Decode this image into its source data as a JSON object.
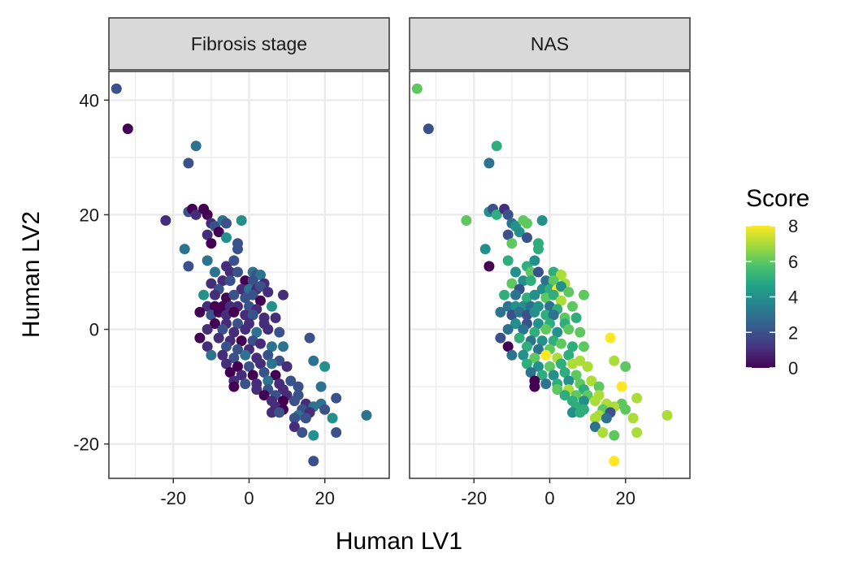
{
  "chart_data": {
    "type": "scatter",
    "facet_titles": [
      "Fibrosis stage",
      "NAS"
    ],
    "xlabel": "Human LV1",
    "ylabel": "Human LV2",
    "xlim": [
      -37,
      37
    ],
    "ylim": [
      -26,
      45
    ],
    "x_ticks": [
      -20,
      0,
      20
    ],
    "y_ticks": [
      -20,
      0,
      20,
      40
    ],
    "x_tick_labels": [
      "-20",
      "0",
      "20"
    ],
    "y_tick_labels": [
      "-20",
      "0",
      "20",
      "40"
    ],
    "legend": {
      "title": "Score",
      "position": "right",
      "range": [
        0,
        8
      ],
      "ticks": [
        0,
        2,
        4,
        6,
        8
      ],
      "tick_labels": [
        "0",
        "2",
        "4",
        "6",
        "8"
      ],
      "colors": [
        "#440154",
        "#46337e",
        "#365c8d",
        "#277f8e",
        "#1fa187",
        "#4ac16d",
        "#9fda3a",
        "#fde725"
      ]
    },
    "grid": true,
    "points": [
      {
        "x": -35,
        "y": 42,
        "fibrosis": 2,
        "nas": 6
      },
      {
        "x": -32,
        "y": 35,
        "fibrosis": 0,
        "nas": 2
      },
      {
        "x": -14,
        "y": 32,
        "fibrosis": 3,
        "nas": 5
      },
      {
        "x": -16,
        "y": 29,
        "fibrosis": 2,
        "nas": 3
      },
      {
        "x": -22,
        "y": 19,
        "fibrosis": 1,
        "nas": 6
      },
      {
        "x": -16,
        "y": 20.5,
        "fibrosis": 2,
        "nas": 4
      },
      {
        "x": -15,
        "y": 21,
        "fibrosis": 0,
        "nas": 2
      },
      {
        "x": -14,
        "y": 20,
        "fibrosis": 1,
        "nas": 5
      },
      {
        "x": -12,
        "y": 21,
        "fibrosis": 0,
        "nas": 1
      },
      {
        "x": -11,
        "y": 20,
        "fibrosis": 0,
        "nas": 2
      },
      {
        "x": -10,
        "y": 18.5,
        "fibrosis": 1,
        "nas": 3
      },
      {
        "x": -9,
        "y": 18,
        "fibrosis": 2,
        "nas": 4
      },
      {
        "x": -7,
        "y": 19,
        "fibrosis": 3,
        "nas": 6
      },
      {
        "x": -6,
        "y": 18.5,
        "fibrosis": 2,
        "nas": 6
      },
      {
        "x": -2,
        "y": 19,
        "fibrosis": 4,
        "nas": 4
      },
      {
        "x": -8,
        "y": 17,
        "fibrosis": 0,
        "nas": 4
      },
      {
        "x": -11,
        "y": 16.5,
        "fibrosis": 1,
        "nas": 2
      },
      {
        "x": -10,
        "y": 15,
        "fibrosis": 0,
        "nas": 6
      },
      {
        "x": -6,
        "y": 16,
        "fibrosis": 4,
        "nas": 2
      },
      {
        "x": -3,
        "y": 15,
        "fibrosis": 2,
        "nas": 5
      },
      {
        "x": -17,
        "y": 14,
        "fibrosis": 3,
        "nas": 4
      },
      {
        "x": -3,
        "y": 14,
        "fibrosis": 2,
        "nas": 5
      },
      {
        "x": -11,
        "y": 12,
        "fibrosis": 3,
        "nas": 5
      },
      {
        "x": -16,
        "y": 11,
        "fibrosis": 2,
        "nas": 0
      },
      {
        "x": -6,
        "y": 11,
        "fibrosis": 1,
        "nas": 5
      },
      {
        "x": -4,
        "y": 12,
        "fibrosis": 2,
        "nas": 4
      },
      {
        "x": -9,
        "y": 10,
        "fibrosis": 3,
        "nas": 4
      },
      {
        "x": -5,
        "y": 10,
        "fibrosis": 1,
        "nas": 6
      },
      {
        "x": -3,
        "y": 10,
        "fibrosis": 2,
        "nas": 2
      },
      {
        "x": 1,
        "y": 10,
        "fibrosis": 3,
        "nas": 5
      },
      {
        "x": 2,
        "y": 9.5,
        "fibrosis": 2,
        "nas": 5
      },
      {
        "x": 3,
        "y": 9.5,
        "fibrosis": 3,
        "nas": 7
      },
      {
        "x": -7,
        "y": 8.5,
        "fibrosis": 1,
        "nas": 4
      },
      {
        "x": -5,
        "y": 8.5,
        "fibrosis": 2,
        "nas": 5
      },
      {
        "x": -1,
        "y": 8.5,
        "fibrosis": 0,
        "nas": 3
      },
      {
        "x": 1,
        "y": 8.5,
        "fibrosis": 2,
        "nas": 6
      },
      {
        "x": 4,
        "y": 8,
        "fibrosis": 1,
        "nas": 7
      },
      {
        "x": -10,
        "y": 8,
        "fibrosis": 1,
        "nas": 6
      },
      {
        "x": -8,
        "y": 7,
        "fibrosis": 2,
        "nas": 2
      },
      {
        "x": -2,
        "y": 7,
        "fibrosis": 1,
        "nas": 4
      },
      {
        "x": 0,
        "y": 7,
        "fibrosis": 3,
        "nas": 5
      },
      {
        "x": 2,
        "y": 7,
        "fibrosis": 1,
        "nas": 8
      },
      {
        "x": 3,
        "y": 7.5,
        "fibrosis": 2,
        "nas": 4
      },
      {
        "x": 5,
        "y": 6.5,
        "fibrosis": 1,
        "nas": 6
      },
      {
        "x": 9,
        "y": 6,
        "fibrosis": 1,
        "nas": 6
      },
      {
        "x": -12,
        "y": 6,
        "fibrosis": 4,
        "nas": 5
      },
      {
        "x": -9,
        "y": 6,
        "fibrosis": 1,
        "nas": 3
      },
      {
        "x": -6,
        "y": 5.5,
        "fibrosis": 0,
        "nas": 5
      },
      {
        "x": -4,
        "y": 6,
        "fibrosis": 2,
        "nas": 4
      },
      {
        "x": -1,
        "y": 5.5,
        "fibrosis": 2,
        "nas": 6
      },
      {
        "x": 1,
        "y": 6,
        "fibrosis": 2,
        "nas": 5
      },
      {
        "x": 3,
        "y": 5,
        "fibrosis": 0,
        "nas": 7
      },
      {
        "x": 6,
        "y": 4,
        "fibrosis": 4,
        "nas": 6
      },
      {
        "x": -11,
        "y": 4,
        "fibrosis": 1,
        "nas": 3
      },
      {
        "x": -9,
        "y": 4,
        "fibrosis": 0,
        "nas": 4
      },
      {
        "x": -7,
        "y": 4,
        "fibrosis": 0,
        "nas": 4
      },
      {
        "x": -5,
        "y": 4,
        "fibrosis": 1,
        "nas": 3
      },
      {
        "x": -3,
        "y": 4,
        "fibrosis": 1,
        "nas": 4
      },
      {
        "x": 0,
        "y": 4,
        "fibrosis": 2,
        "nas": 3
      },
      {
        "x": 2,
        "y": 3.5,
        "fibrosis": 1,
        "nas": 5
      },
      {
        "x": -13,
        "y": 3,
        "fibrosis": 0,
        "nas": 3
      },
      {
        "x": -10,
        "y": 2.5,
        "fibrosis": 2,
        "nas": 2
      },
      {
        "x": -8,
        "y": 3,
        "fibrosis": 0,
        "nas": 3
      },
      {
        "x": -6,
        "y": 2.5,
        "fibrosis": 1,
        "nas": 2
      },
      {
        "x": -4,
        "y": 3,
        "fibrosis": 0,
        "nas": 4
      },
      {
        "x": -1,
        "y": 2.5,
        "fibrosis": 1,
        "nas": 5
      },
      {
        "x": 1,
        "y": 2.5,
        "fibrosis": 2,
        "nas": 3
      },
      {
        "x": 4,
        "y": 2,
        "fibrosis": 1,
        "nas": 6
      },
      {
        "x": 7,
        "y": 2,
        "fibrosis": 1,
        "nas": 5
      },
      {
        "x": -9,
        "y": 1,
        "fibrosis": 0,
        "nas": 4
      },
      {
        "x": -6,
        "y": 1,
        "fibrosis": 1,
        "nas": 2
      },
      {
        "x": -3,
        "y": 1,
        "fibrosis": 2,
        "nas": 4
      },
      {
        "x": 0,
        "y": 1,
        "fibrosis": 1,
        "nas": 5
      },
      {
        "x": 4,
        "y": 1,
        "fibrosis": 1,
        "nas": 5
      },
      {
        "x": -11,
        "y": 0,
        "fibrosis": 1,
        "nas": 3
      },
      {
        "x": -7,
        "y": 0,
        "fibrosis": 2,
        "nas": 3
      },
      {
        "x": -4,
        "y": -0.5,
        "fibrosis": 1,
        "nas": 5
      },
      {
        "x": -1,
        "y": 0,
        "fibrosis": 1,
        "nas": 6
      },
      {
        "x": 2,
        "y": -0.5,
        "fibrosis": 3,
        "nas": 4
      },
      {
        "x": 5,
        "y": 0,
        "fibrosis": 1,
        "nas": 6
      },
      {
        "x": 8,
        "y": -0.5,
        "fibrosis": 2,
        "nas": 6
      },
      {
        "x": -13,
        "y": -1.5,
        "fibrosis": 0,
        "nas": 2
      },
      {
        "x": -8,
        "y": -1.5,
        "fibrosis": 1,
        "nas": 5
      },
      {
        "x": -5,
        "y": -2,
        "fibrosis": 1,
        "nas": 3
      },
      {
        "x": -2,
        "y": -2,
        "fibrosis": 0,
        "nas": 4
      },
      {
        "x": 1,
        "y": -2,
        "fibrosis": 2,
        "nas": 5
      },
      {
        "x": 3,
        "y": -2.5,
        "fibrosis": 1,
        "nas": 6
      },
      {
        "x": 16,
        "y": -1.5,
        "fibrosis": 2,
        "nas": 8
      },
      {
        "x": -11,
        "y": -3,
        "fibrosis": 1,
        "nas": 0
      },
      {
        "x": -6,
        "y": -3,
        "fibrosis": 2,
        "nas": 5
      },
      {
        "x": -3,
        "y": -3.5,
        "fibrosis": 2,
        "nas": 3
      },
      {
        "x": 0,
        "y": -3.5,
        "fibrosis": 1,
        "nas": 6
      },
      {
        "x": 6,
        "y": -3,
        "fibrosis": 3,
        "nas": 5
      },
      {
        "x": 9,
        "y": -3,
        "fibrosis": 3,
        "nas": 6
      },
      {
        "x": -10,
        "y": -4.5,
        "fibrosis": 3,
        "nas": 3
      },
      {
        "x": -7,
        "y": -4.5,
        "fibrosis": 1,
        "nas": 4
      },
      {
        "x": -4,
        "y": -5,
        "fibrosis": 2,
        "nas": 6
      },
      {
        "x": -1,
        "y": -4.5,
        "fibrosis": 3,
        "nas": 8
      },
      {
        "x": 2,
        "y": -5,
        "fibrosis": 1,
        "nas": 7
      },
      {
        "x": 5,
        "y": -4.5,
        "fibrosis": 2,
        "nas": 5
      },
      {
        "x": 8,
        "y": -5.5,
        "fibrosis": 2,
        "nas": 7
      },
      {
        "x": 17,
        "y": -5.5,
        "fibrosis": 3,
        "nas": 7
      },
      {
        "x": -6,
        "y": -6,
        "fibrosis": 1,
        "nas": 5
      },
      {
        "x": -3,
        "y": -6.5,
        "fibrosis": 0,
        "nas": 4
      },
      {
        "x": 0,
        "y": -6.5,
        "fibrosis": 2,
        "nas": 6
      },
      {
        "x": 3,
        "y": -6,
        "fibrosis": 1,
        "nas": 5
      },
      {
        "x": 6,
        "y": -6,
        "fibrosis": 3,
        "nas": 7
      },
      {
        "x": 10,
        "y": -6.5,
        "fibrosis": 1,
        "nas": 7
      },
      {
        "x": 20,
        "y": -6.5,
        "fibrosis": 4,
        "nas": 6
      },
      {
        "x": -5,
        "y": -7.5,
        "fibrosis": 0,
        "nas": 3
      },
      {
        "x": -2,
        "y": -8,
        "fibrosis": 1,
        "nas": 5
      },
      {
        "x": 1,
        "y": -8,
        "fibrosis": 0,
        "nas": 4
      },
      {
        "x": 4,
        "y": -7.5,
        "fibrosis": 2,
        "nas": 5
      },
      {
        "x": 7,
        "y": -8,
        "fibrosis": 0,
        "nas": 6
      },
      {
        "x": -4,
        "y": -9,
        "fibrosis": 1,
        "nas": 0
      },
      {
        "x": -1,
        "y": -9.5,
        "fibrosis": 2,
        "nas": 3
      },
      {
        "x": 2,
        "y": -9.5,
        "fibrosis": 1,
        "nas": 5
      },
      {
        "x": 5,
        "y": -9,
        "fibrosis": 3,
        "nas": 4
      },
      {
        "x": 8,
        "y": -9.5,
        "fibrosis": 1,
        "nas": 6
      },
      {
        "x": 11,
        "y": -9,
        "fibrosis": 2,
        "nas": 7
      },
      {
        "x": -4,
        "y": -10,
        "fibrosis": 0,
        "nas": 0
      },
      {
        "x": 2,
        "y": -10.5,
        "fibrosis": 1,
        "nas": 6
      },
      {
        "x": 5,
        "y": -10.5,
        "fibrosis": 2,
        "nas": 7
      },
      {
        "x": 9,
        "y": -10.5,
        "fibrosis": 1,
        "nas": 5
      },
      {
        "x": 13,
        "y": -10,
        "fibrosis": 2,
        "nas": 6
      },
      {
        "x": 19,
        "y": -10,
        "fibrosis": 3,
        "nas": 8
      },
      {
        "x": 4,
        "y": -11.5,
        "fibrosis": 0,
        "nas": 5
      },
      {
        "x": 7,
        "y": -11.5,
        "fibrosis": 2,
        "nas": 6
      },
      {
        "x": 10,
        "y": -11.5,
        "fibrosis": 1,
        "nas": 6
      },
      {
        "x": 13,
        "y": -11.5,
        "fibrosis": 2,
        "nas": 7
      },
      {
        "x": 6,
        "y": -12.5,
        "fibrosis": 1,
        "nas": 5
      },
      {
        "x": 9,
        "y": -12.5,
        "fibrosis": 0,
        "nas": 4
      },
      {
        "x": 12,
        "y": -12.5,
        "fibrosis": 2,
        "nas": 7
      },
      {
        "x": 15,
        "y": -13,
        "fibrosis": 1,
        "nas": 7
      },
      {
        "x": 19,
        "y": -13,
        "fibrosis": 3,
        "nas": 6
      },
      {
        "x": 23,
        "y": -12,
        "fibrosis": 2,
        "nas": 7
      },
      {
        "x": 7,
        "y": -13.5,
        "fibrosis": 1,
        "nas": 5
      },
      {
        "x": 9,
        "y": -14,
        "fibrosis": 0,
        "nas": 5
      },
      {
        "x": 14,
        "y": -14,
        "fibrosis": 2,
        "nas": 6
      },
      {
        "x": 17,
        "y": -13.5,
        "fibrosis": 3,
        "nas": 7
      },
      {
        "x": 20,
        "y": -14,
        "fibrosis": 2,
        "nas": 6
      },
      {
        "x": 6,
        "y": -14.5,
        "fibrosis": 1,
        "nas": 4
      },
      {
        "x": 8,
        "y": -14.5,
        "fibrosis": 2,
        "nas": 5
      },
      {
        "x": 13,
        "y": -15,
        "fibrosis": 3,
        "nas": 7
      },
      {
        "x": 16,
        "y": -14.5,
        "fibrosis": 1,
        "nas": 2
      },
      {
        "x": 12,
        "y": -15.5,
        "fibrosis": 2,
        "nas": 7
      },
      {
        "x": 15,
        "y": -15.5,
        "fibrosis": 2,
        "nas": 3
      },
      {
        "x": 22,
        "y": -15.5,
        "fibrosis": 4,
        "nas": 7
      },
      {
        "x": 31,
        "y": -15,
        "fibrosis": 3,
        "nas": 7
      },
      {
        "x": 12,
        "y": -17,
        "fibrosis": 1,
        "nas": 3
      },
      {
        "x": 14,
        "y": -18,
        "fibrosis": 2,
        "nas": 7
      },
      {
        "x": 17,
        "y": -18.5,
        "fibrosis": 4,
        "nas": 6
      },
      {
        "x": 23,
        "y": -18,
        "fibrosis": 2,
        "nas": 7
      },
      {
        "x": 17,
        "y": -23,
        "fibrosis": 2,
        "nas": 8
      }
    ]
  }
}
